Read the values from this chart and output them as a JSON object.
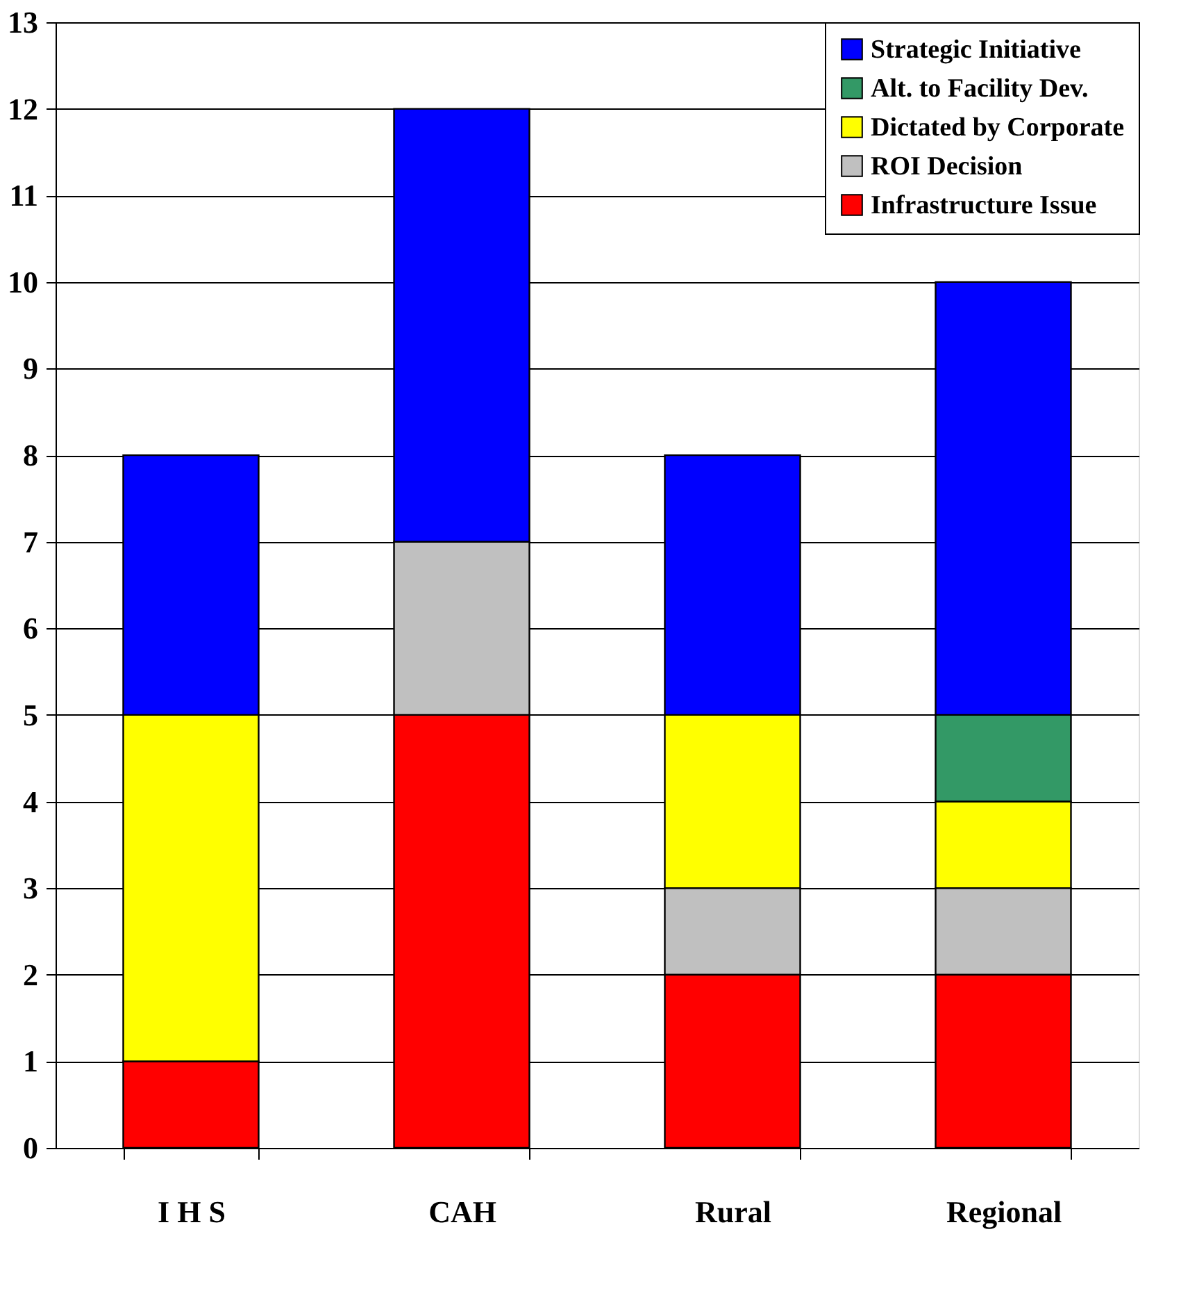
{
  "chart_data": {
    "type": "bar",
    "stacked": true,
    "categories": [
      "I H S",
      "CAH",
      "Rural",
      "Regional"
    ],
    "series": [
      {
        "name": "Infrastructure Issue",
        "color": "#ff0000",
        "values": [
          1,
          5,
          2,
          2
        ]
      },
      {
        "name": "ROI Decision",
        "color": "#c0c0c0",
        "values": [
          0,
          2,
          1,
          1
        ]
      },
      {
        "name": "Dictated by Corporate",
        "color": "#ffff00",
        "values": [
          4,
          0,
          2,
          1
        ]
      },
      {
        "name": "Alt. to Facility Dev.",
        "color": "#339966",
        "values": [
          0,
          0,
          0,
          1
        ]
      },
      {
        "name": "Strategic Initiative",
        "color": "#0000ff",
        "values": [
          3,
          5,
          3,
          5
        ]
      }
    ],
    "ylim": [
      0,
      13
    ],
    "yticks": [
      0,
      1,
      2,
      3,
      4,
      5,
      6,
      7,
      8,
      9,
      10,
      11,
      12,
      13
    ],
    "grid": "y",
    "legend": "top right"
  }
}
